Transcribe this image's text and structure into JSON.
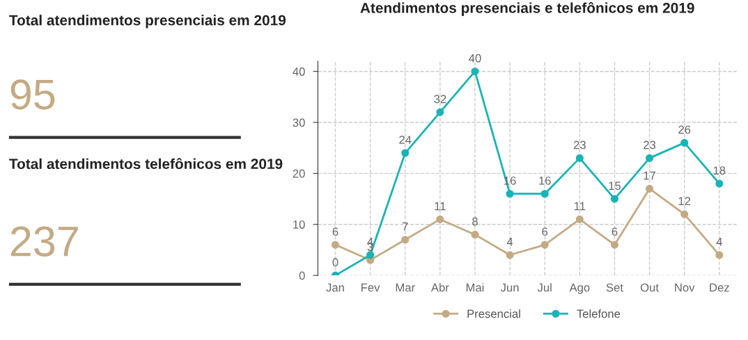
{
  "chart_data": [
    {
      "type": "other",
      "annotations": [
        "Total atendimentos presenciais em 2019",
        "95",
        "Total atendimentos telefônicos em 2019",
        "237"
      ]
    },
    {
      "type": "line",
      "title": "Atendimentos presenciais e telefônicos em 2019",
      "categories": [
        "Jan",
        "Fev",
        "Mar",
        "Abr",
        "Mai",
        "Jun",
        "Jul",
        "Ago",
        "Set",
        "Out",
        "Nov",
        "Dez"
      ],
      "series": [
        {
          "name": "Presencial",
          "color": "#c4aa84",
          "values": [
            6,
            3,
            7,
            11,
            8,
            4,
            6,
            11,
            6,
            17,
            12,
            4
          ]
        },
        {
          "name": "Telefone",
          "color": "#1ab3b6",
          "values": [
            0,
            4,
            24,
            32,
            40,
            16,
            16,
            23,
            15,
            23,
            26,
            18
          ]
        }
      ],
      "ylim": [
        0,
        42
      ],
      "yticks": [
        0,
        10,
        20,
        30,
        40
      ],
      "grid": true,
      "legend": "bottom",
      "marker": "circle",
      "line_style": "solid",
      "data_labels": true
    }
  ]
}
